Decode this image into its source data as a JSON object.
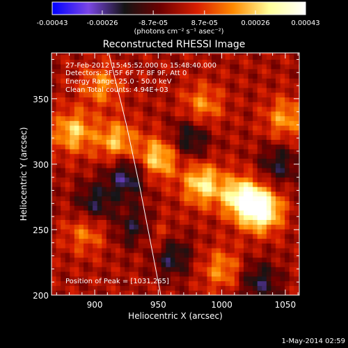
{
  "chart_data": {
    "type": "heatmap",
    "title": "Reconstructed RHESSI Image",
    "xlabel": "Heliocentric X (arcsec)",
    "ylabel": "Heliocentric Y (arcsec)",
    "xlim": [
      866,
      1061
    ],
    "ylim": [
      200,
      385
    ],
    "x_ticks": [
      900,
      950,
      1000,
      1050
    ],
    "y_ticks": [
      200,
      250,
      300,
      350
    ],
    "colorbar": {
      "min": -0.00043,
      "max": 0.00043,
      "tick_labels": [
        "-0.00043",
        "-0.00026",
        "-8.7e-05",
        "8.7e-05",
        "0.00026",
        "0.00043"
      ],
      "tick_values": [
        -0.00043,
        -0.00026,
        -8.7e-05,
        8.7e-05,
        0.00026,
        0.00043
      ],
      "unit_label": "(photons cm⁻² s⁻¹ asec⁻²)",
      "colors": [
        "#0000ff",
        "#7b46e6",
        "#141414",
        "#6e0000",
        "#d81e00",
        "#ff8a00",
        "#ffff9a",
        "#ffffff"
      ]
    },
    "annotations": [
      "27-Feb-2012 15:45:52.000 to 15:48:40.000",
      "Detectors: 3F 5F 6F 7F 8F 9F, Att 0",
      "Energy Range: 25.0 - 50.0 keV",
      "Clean     Total counts: 4.94E+03"
    ],
    "peak_label": "Position of Peak = [1031,265]",
    "peak": [
      1031,
      265
    ],
    "limb_curve": [
      [
        911,
        385
      ],
      [
        925,
        330
      ],
      [
        936,
        280
      ],
      [
        944,
        240
      ],
      [
        952,
        200
      ]
    ],
    "hot_spots": [
      {
        "x": 1031,
        "y": 265,
        "value": 0.00043
      },
      {
        "x": 1015,
        "y": 275,
        "value": 0.00034
      },
      {
        "x": 985,
        "y": 285,
        "value": 0.0003
      },
      {
        "x": 950,
        "y": 305,
        "value": 0.00028
      },
      {
        "x": 883,
        "y": 325,
        "value": 0.00026
      },
      {
        "x": 917,
        "y": 318,
        "value": 0.00024
      },
      {
        "x": 945,
        "y": 245,
        "value": 0.0002
      },
      {
        "x": 1050,
        "y": 335,
        "value": 0.0002
      },
      {
        "x": 1000,
        "y": 220,
        "value": 0.00018
      },
      {
        "x": 985,
        "y": 345,
        "value": 0.00018
      },
      {
        "x": 905,
        "y": 360,
        "value": 0.00018
      },
      {
        "x": 893,
        "y": 248,
        "value": 0.00016
      }
    ],
    "cold_spots": [
      {
        "x": 935,
        "y": 250,
        "value": -0.00026
      },
      {
        "x": 925,
        "y": 290,
        "value": -0.00024
      },
      {
        "x": 960,
        "y": 230,
        "value": -0.00022
      },
      {
        "x": 1030,
        "y": 210,
        "value": -0.0002
      },
      {
        "x": 975,
        "y": 320,
        "value": -0.0002
      },
      {
        "x": 900,
        "y": 270,
        "value": -0.0002
      },
      {
        "x": 1045,
        "y": 300,
        "value": -0.00018
      }
    ]
  },
  "footer": {
    "timestamp": "1-May-2014 02:59"
  }
}
